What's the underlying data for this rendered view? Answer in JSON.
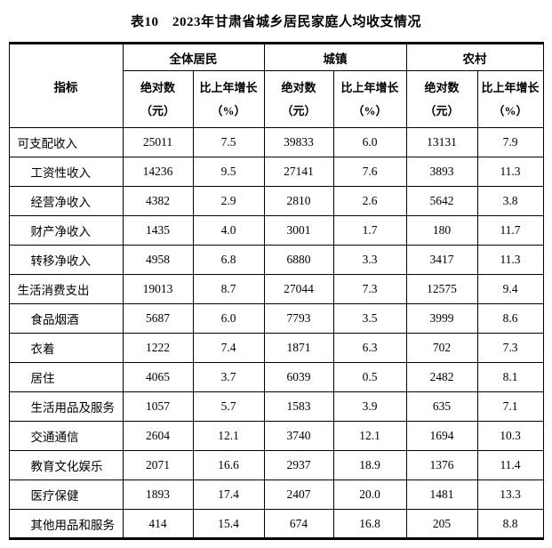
{
  "page_title": "表10　2023年甘肃省城乡居民家庭人均收支情况",
  "table": {
    "corner_header": "指标",
    "groups": [
      {
        "label": "全体居民"
      },
      {
        "label": "城镇"
      },
      {
        "label": "农村"
      }
    ],
    "sub_headers": {
      "absolute": "绝对数\n（元）",
      "growth": "比上年增长\n（%）"
    },
    "rows": [
      {
        "label": "可支配收入",
        "indent": false,
        "values": [
          "25011",
          "7.5",
          "39833",
          "6.0",
          "13131",
          "7.9"
        ]
      },
      {
        "label": "工资性收入",
        "indent": true,
        "values": [
          "14236",
          "9.5",
          "27141",
          "7.6",
          "3893",
          "11.3"
        ]
      },
      {
        "label": "经营净收入",
        "indent": true,
        "values": [
          "4382",
          "2.9",
          "2810",
          "2.6",
          "5642",
          "3.8"
        ]
      },
      {
        "label": "财产净收入",
        "indent": true,
        "values": [
          "1435",
          "4.0",
          "3001",
          "1.7",
          "180",
          "11.7"
        ]
      },
      {
        "label": "转移净收入",
        "indent": true,
        "values": [
          "4958",
          "6.8",
          "6880",
          "3.3",
          "3417",
          "11.3"
        ]
      },
      {
        "label": "生活消费支出",
        "indent": false,
        "values": [
          "19013",
          "8.7",
          "27044",
          "7.3",
          "12575",
          "9.4"
        ]
      },
      {
        "label": "食品烟酒",
        "indent": true,
        "values": [
          "5687",
          "6.0",
          "7793",
          "3.5",
          "3999",
          "8.6"
        ]
      },
      {
        "label": "衣着",
        "indent": true,
        "values": [
          "1222",
          "7.4",
          "1871",
          "6.3",
          "702",
          "7.3"
        ]
      },
      {
        "label": "居住",
        "indent": true,
        "values": [
          "4065",
          "3.7",
          "6039",
          "0.5",
          "2482",
          "8.1"
        ]
      },
      {
        "label": "生活用品及服务",
        "indent": true,
        "values": [
          "1057",
          "5.7",
          "1583",
          "3.9",
          "635",
          "7.1"
        ]
      },
      {
        "label": "交通通信",
        "indent": true,
        "values": [
          "2604",
          "12.1",
          "3740",
          "12.1",
          "1694",
          "10.3"
        ]
      },
      {
        "label": "教育文化娱乐",
        "indent": true,
        "values": [
          "2071",
          "16.6",
          "2937",
          "18.9",
          "1376",
          "11.4"
        ]
      },
      {
        "label": "医疗保健",
        "indent": true,
        "values": [
          "1893",
          "17.4",
          "2407",
          "20.0",
          "1481",
          "13.3"
        ]
      },
      {
        "label": "其他用品和服务",
        "indent": true,
        "values": [
          "414",
          "15.4",
          "674",
          "16.8",
          "205",
          "8.8"
        ]
      }
    ]
  }
}
